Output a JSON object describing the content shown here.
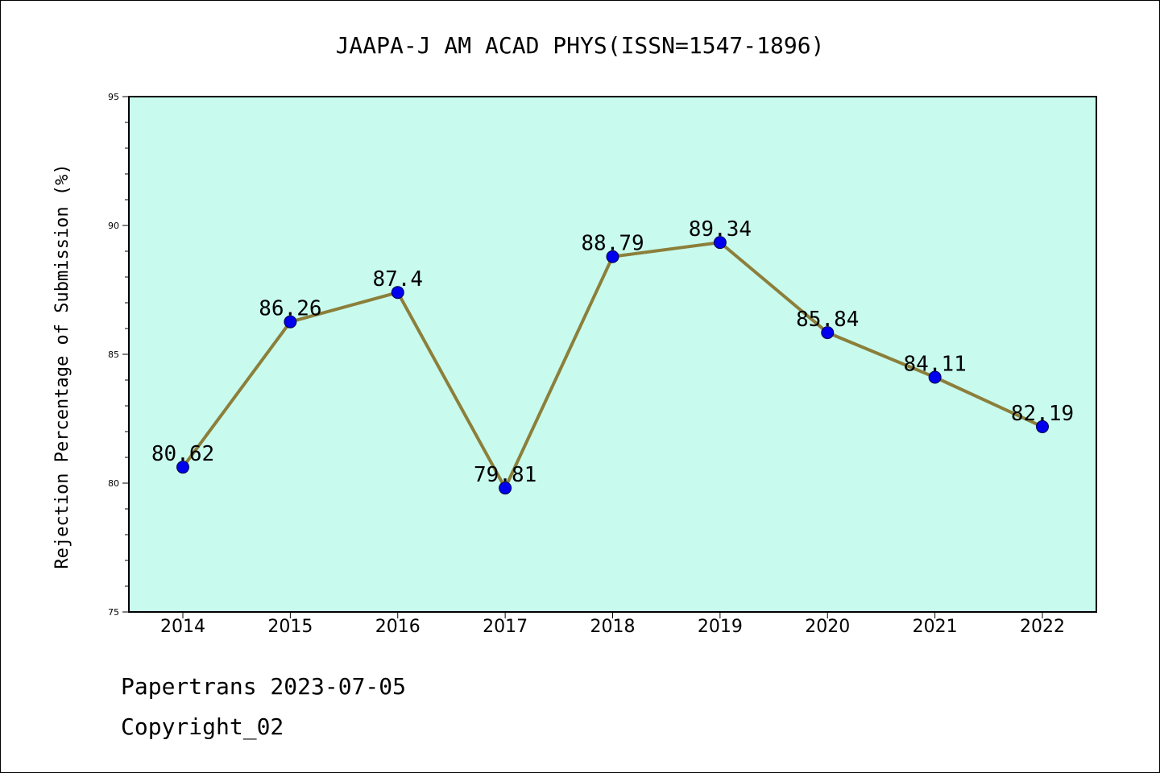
{
  "chart_data": {
    "type": "line",
    "title": "JAAPA-J AM ACAD PHYS(ISSN=1547-1896)",
    "xlabel": "",
    "ylabel": "Rejection Percentage of Submission (%)",
    "categories": [
      "2014",
      "2015",
      "2016",
      "2017",
      "2018",
      "2019",
      "2020",
      "2021",
      "2022"
    ],
    "series": [
      {
        "values": [
          80.62,
          86.26,
          87.4,
          79.81,
          88.79,
          89.34,
          85.84,
          84.11,
          82.19
        ],
        "data_labels": [
          "80.62",
          "86.26",
          "87.4",
          "79.81",
          "88.79",
          "89.34",
          "85.84",
          "84.11",
          "82.19"
        ]
      }
    ],
    "ylim": [
      75,
      95
    ],
    "yticks": [
      "75",
      "80",
      "85",
      "90",
      "95"
    ],
    "grid": false,
    "legend": "none",
    "colors": {
      "plot_background": "#c8fbee",
      "line": "#8c7f3a",
      "marker": "#0000ee"
    }
  },
  "footer": {
    "line1": "Papertrans 2023-07-05",
    "line2": "Copyright_02"
  }
}
